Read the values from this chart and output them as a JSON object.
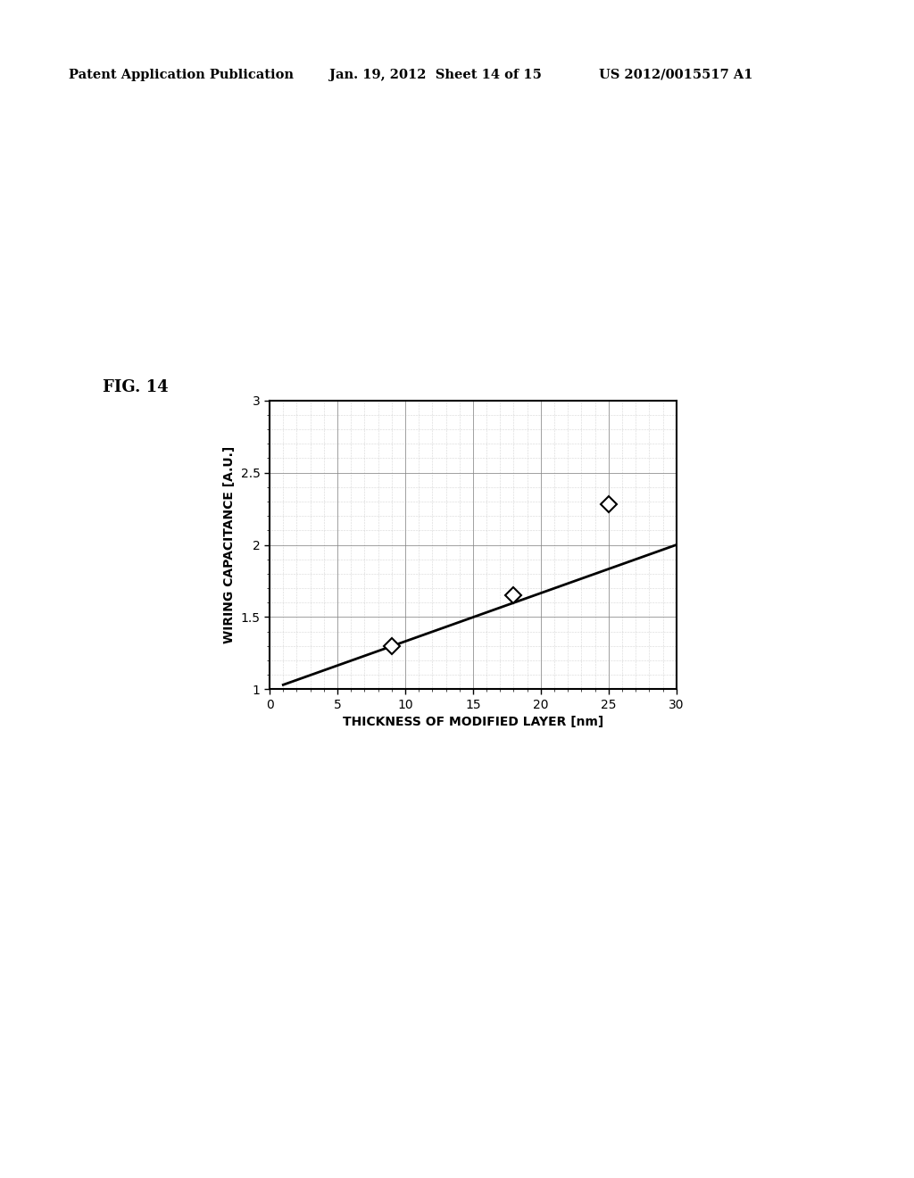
{
  "fig_label": "FIG. 14",
  "header_left": "Patent Application Publication",
  "header_center": "Jan. 19, 2012  Sheet 14 of 15",
  "header_right": "US 2012/0015517 A1",
  "xlabel": "THICKNESS OF MODIFIED LAYER [nm]",
  "ylabel": "WIRING CAPACITANCE [A.U.]",
  "xlim": [
    0,
    30
  ],
  "ylim": [
    1,
    3
  ],
  "xticks": [
    0,
    5,
    10,
    15,
    20,
    25,
    30
  ],
  "yticks": [
    1,
    1.5,
    2,
    2.5,
    3
  ],
  "data_points_x": [
    9,
    18,
    25
  ],
  "data_points_y": [
    1.3,
    1.65,
    2.28
  ],
  "line_x": [
    1.0,
    30
  ],
  "line_y": [
    1.03,
    2.0
  ],
  "background_color": "#ffffff",
  "line_color": "#000000",
  "marker_color": "#000000",
  "text_color": "#000000"
}
